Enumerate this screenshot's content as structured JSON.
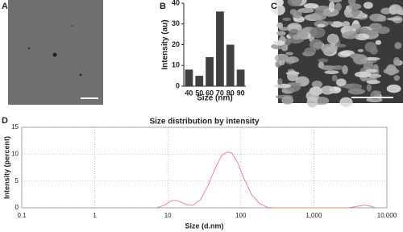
{
  "panels": {
    "labels": [
      "A",
      "B",
      "C",
      "D"
    ]
  },
  "chart_data": [
    {
      "type": "bar",
      "categories": [
        "40",
        "50",
        "60",
        "70",
        "80",
        "90"
      ],
      "values": [
        8,
        5,
        14,
        36,
        20,
        8
      ],
      "color": "#404040",
      "ylim": [
        0,
        40
      ],
      "yticks": [
        0,
        10,
        20,
        30,
        40
      ],
      "ylabel": "Intensity (au)",
      "xlabel": "Size (nm)",
      "grid": false
    },
    {
      "type": "line",
      "title": "Size distribution by intensity",
      "xlabel": "Size (d.nm)",
      "ylabel": "Intensity (percent)",
      "xscale": "log",
      "xlim": [
        0.1,
        10000
      ],
      "xticks": [
        0.1,
        1,
        10,
        100,
        {
          "value": 1000,
          "label": "1,000"
        },
        {
          "value": 10000,
          "label": "10,000"
        }
      ],
      "ylim": [
        0,
        15
      ],
      "yticks": [
        0,
        5,
        10,
        15
      ],
      "grid": true,
      "x": [
        7,
        9,
        11,
        13,
        15,
        18,
        22,
        28,
        35,
        45,
        55,
        65,
        75,
        90,
        110,
        140,
        180,
        230,
        280,
        3000,
        4000,
        5000,
        6000,
        7000
      ],
      "series": [
        {
          "color": "#e8888a",
          "values": [
            0,
            0.5,
            1.3,
            1.4,
            1.1,
            0.6,
            0.5,
            1.5,
            4,
            7.5,
            9.8,
            10.4,
            10.2,
            8.5,
            5.5,
            2.5,
            0.8,
            0.1,
            0,
            0,
            0.3,
            0.5,
            0.3,
            0
          ]
        }
      ]
    }
  ]
}
